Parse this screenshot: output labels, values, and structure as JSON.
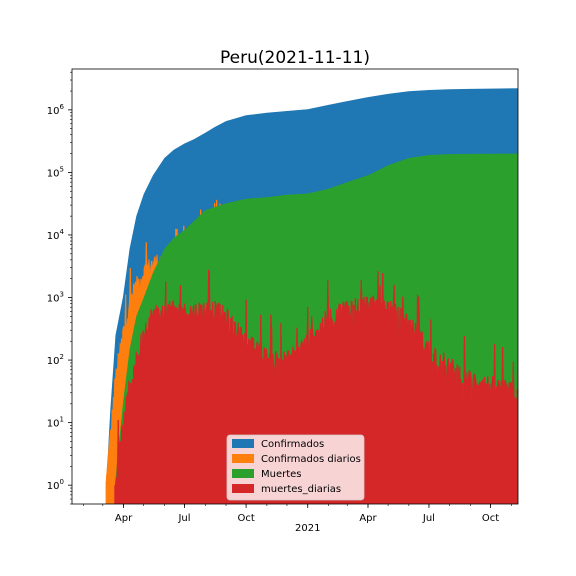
{
  "chart_data": {
    "type": "area",
    "title": "Peru(2021-11-11)",
    "xlabel": "",
    "ylabel": "",
    "yscale": "log",
    "ylim": [
      0.5,
      4500000
    ],
    "y_ticks": [
      {
        "base": "10",
        "exp": "0"
      },
      {
        "base": "10",
        "exp": "1"
      },
      {
        "base": "10",
        "exp": "2"
      },
      {
        "base": "10",
        "exp": "3"
      },
      {
        "base": "10",
        "exp": "4"
      },
      {
        "base": "10",
        "exp": "5"
      },
      {
        "base": "10",
        "exp": "6"
      }
    ],
    "x_range": [
      "2020-01-15",
      "2021-11-11"
    ],
    "x_ticks": [
      {
        "date": "2020-04-01",
        "label": "Apr"
      },
      {
        "date": "2020-07-01",
        "label": "Jul"
      },
      {
        "date": "2020-10-01",
        "label": "Oct"
      },
      {
        "date": "2021-01-01",
        "label": "2021"
      },
      {
        "date": "2021-04-01",
        "label": "Apr"
      },
      {
        "date": "2021-07-01",
        "label": "Jul"
      },
      {
        "date": "2021-10-01",
        "label": "Oct"
      }
    ],
    "legend_position": "lower-center",
    "series": [
      {
        "name": "Confirmados",
        "color": "#1f77b4",
        "kind": "area",
        "points": [
          [
            "2020-03-06",
            1
          ],
          [
            "2020-03-12",
            15
          ],
          [
            "2020-03-20",
            250
          ],
          [
            "2020-03-31",
            1000
          ],
          [
            "2020-04-10",
            6000
          ],
          [
            "2020-04-20",
            20000
          ],
          [
            "2020-05-01",
            45000
          ],
          [
            "2020-05-15",
            90000
          ],
          [
            "2020-06-01",
            170000
          ],
          [
            "2020-06-15",
            230000
          ],
          [
            "2020-07-01",
            290000
          ],
          [
            "2020-07-15",
            340000
          ],
          [
            "2020-08-01",
            430000
          ],
          [
            "2020-08-15",
            530000
          ],
          [
            "2020-09-01",
            660000
          ],
          [
            "2020-10-01",
            820000
          ],
          [
            "2020-11-01",
            900000
          ],
          [
            "2020-12-01",
            960000
          ],
          [
            "2021-01-01",
            1020000
          ],
          [
            "2021-02-01",
            1200000
          ],
          [
            "2021-03-01",
            1380000
          ],
          [
            "2021-04-01",
            1600000
          ],
          [
            "2021-05-01",
            1800000
          ],
          [
            "2021-06-01",
            1990000
          ],
          [
            "2021-07-01",
            2080000
          ],
          [
            "2021-08-01",
            2130000
          ],
          [
            "2021-09-01",
            2160000
          ],
          [
            "2021-10-01",
            2190000
          ],
          [
            "2021-11-11",
            2210000
          ]
        ]
      },
      {
        "name": "Confirmados diarios",
        "color": "#ff7f0e",
        "kind": "daily",
        "points": [
          [
            "2020-03-06",
            1
          ],
          [
            "2020-03-20",
            50
          ],
          [
            "2020-04-01",
            300
          ],
          [
            "2020-04-15",
            1200
          ],
          [
            "2020-05-01",
            2500
          ],
          [
            "2020-05-15",
            3500
          ],
          [
            "2020-06-01",
            4000
          ],
          [
            "2020-06-15",
            4000
          ],
          [
            "2020-07-01",
            3500
          ],
          [
            "2020-07-15",
            4000
          ],
          [
            "2020-08-01",
            6000
          ],
          [
            "2020-08-15",
            8000
          ],
          [
            "2020-09-01",
            6000
          ],
          [
            "2020-10-01",
            3500
          ],
          [
            "2020-11-01",
            2000
          ],
          [
            "2020-12-01",
            2500
          ],
          [
            "2021-01-01",
            3500
          ],
          [
            "2021-02-01",
            8000
          ],
          [
            "2021-03-01",
            8000
          ],
          [
            "2021-04-01",
            9000
          ],
          [
            "2021-05-01",
            6000
          ],
          [
            "2021-06-01",
            3500
          ],
          [
            "2021-07-01",
            1500
          ],
          [
            "2021-08-01",
            1000
          ],
          [
            "2021-09-01",
            1000
          ],
          [
            "2021-10-01",
            1000
          ],
          [
            "2021-11-11",
            1000
          ]
        ]
      },
      {
        "name": "Muertes",
        "color": "#2ca02c",
        "kind": "area",
        "points": [
          [
            "2020-03-19",
            1
          ],
          [
            "2020-03-31",
            20
          ],
          [
            "2020-04-10",
            150
          ],
          [
            "2020-04-20",
            500
          ],
          [
            "2020-05-01",
            1000
          ],
          [
            "2020-05-15",
            2500
          ],
          [
            "2020-06-01",
            6000
          ],
          [
            "2020-06-15",
            9000
          ],
          [
            "2020-07-01",
            12000
          ],
          [
            "2020-08-01",
            25000
          ],
          [
            "2020-09-01",
            32000
          ],
          [
            "2020-10-01",
            38000
          ],
          [
            "2020-11-01",
            40000
          ],
          [
            "2020-12-01",
            44000
          ],
          [
            "2021-01-01",
            46000
          ],
          [
            "2021-02-01",
            55000
          ],
          [
            "2021-03-01",
            70000
          ],
          [
            "2021-04-01",
            90000
          ],
          [
            "2021-05-01",
            130000
          ],
          [
            "2021-06-01",
            170000
          ],
          [
            "2021-07-01",
            190000
          ],
          [
            "2021-08-01",
            196000
          ],
          [
            "2021-09-01",
            198000
          ],
          [
            "2021-10-01",
            199000
          ],
          [
            "2021-11-11",
            200000
          ]
        ]
      },
      {
        "name": "muertes_diarias",
        "color": "#d62728",
        "kind": "daily",
        "points": [
          [
            "2020-03-19",
            1
          ],
          [
            "2020-04-01",
            10
          ],
          [
            "2020-04-10",
            40
          ],
          [
            "2020-04-20",
            100
          ],
          [
            "2020-05-01",
            300
          ],
          [
            "2020-05-15",
            550
          ],
          [
            "2020-06-01",
            600
          ],
          [
            "2020-06-15",
            650
          ],
          [
            "2020-07-01",
            600
          ],
          [
            "2020-07-15",
            600
          ],
          [
            "2020-08-01",
            650
          ],
          [
            "2020-08-15",
            650
          ],
          [
            "2020-09-01",
            500
          ],
          [
            "2020-10-01",
            200
          ],
          [
            "2020-11-01",
            110
          ],
          [
            "2020-12-01",
            100
          ],
          [
            "2021-01-01",
            200
          ],
          [
            "2021-02-01",
            500
          ],
          [
            "2021-03-01",
            700
          ],
          [
            "2021-04-01",
            800
          ],
          [
            "2021-05-01",
            700
          ],
          [
            "2021-06-01",
            400
          ],
          [
            "2021-07-01",
            150
          ],
          [
            "2021-08-01",
            80
          ],
          [
            "2021-09-01",
            50
          ],
          [
            "2021-10-01",
            40
          ],
          [
            "2021-11-11",
            30
          ]
        ]
      }
    ]
  }
}
